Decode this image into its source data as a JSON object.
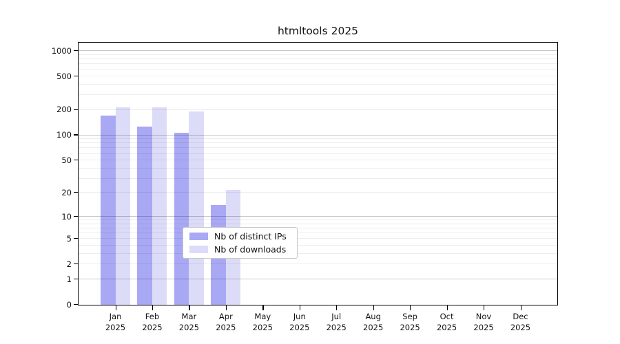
{
  "title": "htmltools 2025",
  "chart_data": {
    "type": "bar",
    "title": "htmltools 2025",
    "subtitle": "",
    "xlabel": "",
    "ylabel": "",
    "scale": "log1p",
    "categories": [
      "Jan",
      "Feb",
      "Mar",
      "Apr",
      "May",
      "Jun",
      "Jul",
      "Aug",
      "Sep",
      "Oct",
      "Nov",
      "Dec"
    ],
    "year_label": "2025",
    "yticks": [
      1000,
      500,
      200,
      100,
      50,
      20,
      10,
      5,
      2,
      1,
      0
    ],
    "ylim": [
      0,
      1257
    ],
    "grid": true,
    "legend_position": "inside-bottom-center",
    "series": [
      {
        "name": "Nb of distinct IPs",
        "color": "#a8a8f4",
        "values": [
          171,
          128,
          107,
          14,
          0,
          0,
          0,
          0,
          0,
          0,
          0,
          0
        ]
      },
      {
        "name": "Nb of downloads",
        "color": "#dcdcf8",
        "values": [
          217,
          214,
          194,
          22,
          0,
          0,
          0,
          0,
          0,
          0,
          0,
          0
        ]
      }
    ],
    "colors": {
      "axis": "#000000",
      "text": "#111111"
    }
  }
}
